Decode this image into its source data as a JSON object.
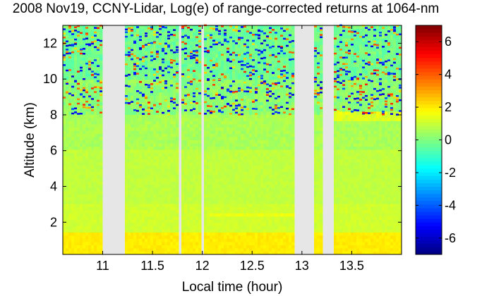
{
  "title": "2008 Nov19, CCNY-Lidar, Log(e) of range-corrected returns at 1064-nm",
  "chart_data": {
    "type": "heatmap",
    "title": "2008 Nov19, CCNY-Lidar, Log(e) of range-corrected returns at 1064-nm",
    "xlabel": "Local time (hour)",
    "ylabel": "Altitude (km)",
    "xlim": [
      10.6,
      14.0
    ],
    "ylim": [
      0.2,
      13.0
    ],
    "xticks": [
      11,
      11.5,
      12,
      12.5,
      13,
      13.5
    ],
    "xtick_labels": [
      "11",
      "11.5",
      "12",
      "12.5",
      "13",
      "13.5"
    ],
    "yticks": [
      2,
      4,
      6,
      8,
      10,
      12
    ],
    "ytick_labels": [
      "2",
      "4",
      "6",
      "8",
      "10",
      "12"
    ],
    "colorbar": {
      "colormap": "jet",
      "range": [
        -7,
        7
      ],
      "ticks": [
        -6,
        -4,
        -2,
        0,
        2,
        4,
        6
      ],
      "tick_labels": [
        "-6",
        "-4",
        "-2",
        "0",
        "2",
        "4",
        "6"
      ]
    },
    "data_gaps_hours": [
      [
        11.01,
        11.22
      ],
      [
        11.77,
        11.79
      ],
      [
        11.99,
        12.03
      ],
      [
        12.06,
        12.08
      ],
      [
        12.93,
        13.11
      ],
      [
        13.22,
        13.31
      ]
    ],
    "profile_layers": [
      {
        "altitude_km": [
          0.2,
          1.5
        ],
        "log_return": 2.0
      },
      {
        "altitude_km": [
          1.5,
          3.0
        ],
        "log_return": 1.1
      },
      {
        "altitude_km": [
          3.0,
          6.0
        ],
        "log_return": 0.9
      },
      {
        "altitude_km": [
          6.0,
          8.0
        ],
        "log_return": 0.6
      },
      {
        "altitude_km": [
          8.0,
          10.0
        ],
        "log_return": 0.2
      },
      {
        "altitude_km": [
          10.0,
          13.0
        ],
        "log_return": -0.2
      }
    ],
    "features": [
      {
        "time_hours": [
          13.31,
          14.0
        ],
        "altitude_km": [
          7.6,
          8.2
        ],
        "log_return": 1.3
      },
      {
        "time_hours": [
          12.08,
          12.93
        ],
        "altitude_km": [
          2.3,
          2.6
        ],
        "log_return": 1.5
      }
    ],
    "background_color": "#e6e6e6"
  }
}
